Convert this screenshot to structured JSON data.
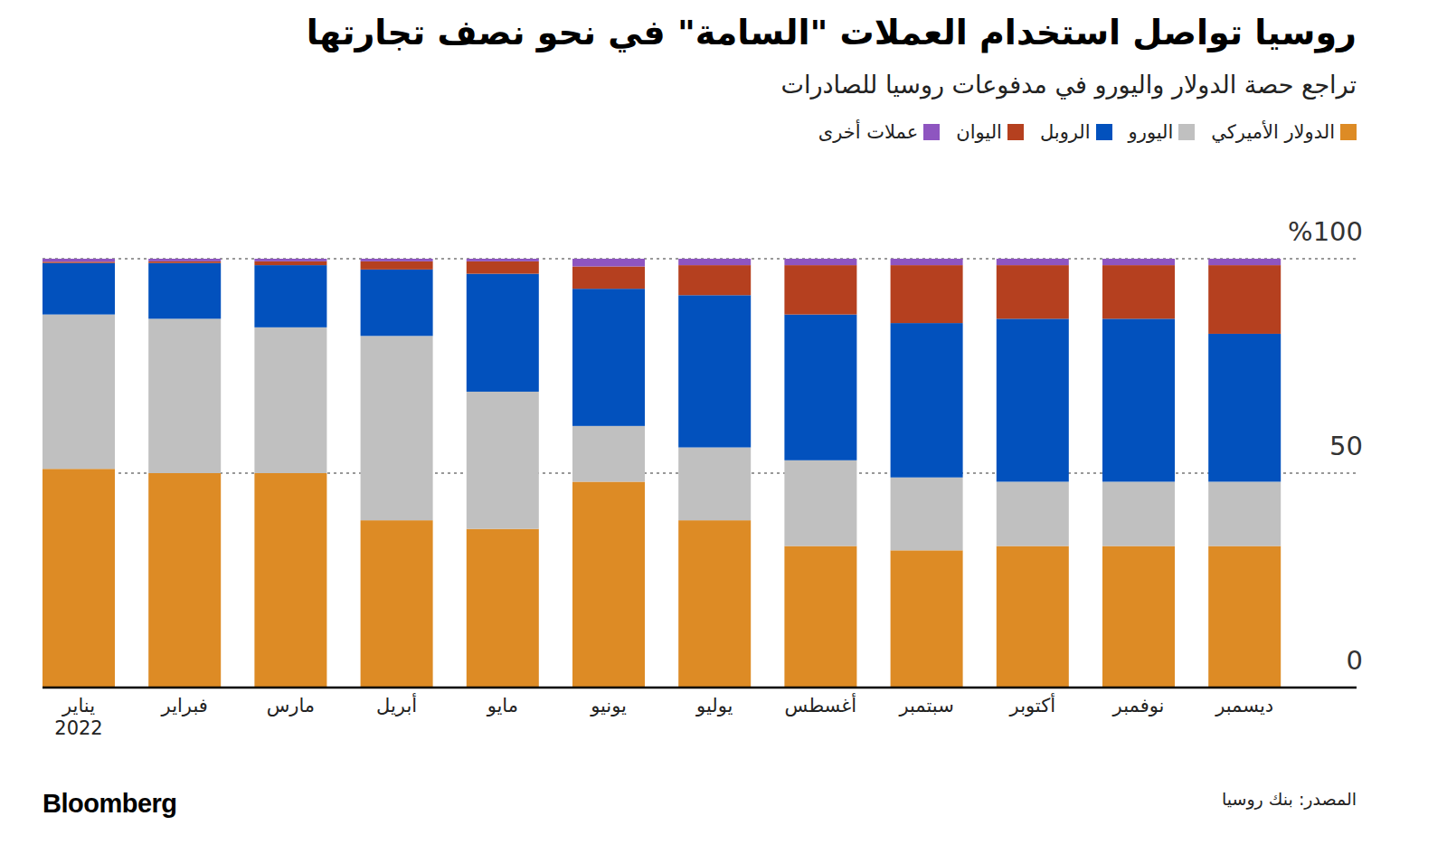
{
  "chart_data": {
    "type": "bar",
    "stacked": true,
    "grid": true,
    "title": "روسيا تواصل استخدام العملات \"السامة\" في نحو نصف تجارتها",
    "subtitle": "تراجع حصة الدولار واليورو في مدفوعات روسيا للصادرات",
    "source": "المصدر: بنك روسيا",
    "brand": "Bloomberg",
    "categories": [
      "يناير 2022",
      "فبراير",
      "مارس",
      "أبريل",
      "مايو",
      "يونيو",
      "يوليو",
      "أغسطس",
      "سبتمبر",
      "أكتوبر",
      "نوفمبر",
      "ديسمبر"
    ],
    "ylim": [
      0,
      100
    ],
    "yticks": [
      0,
      50,
      {
        "value": 100,
        "label": "%100"
      }
    ],
    "series": [
      {
        "name": "الدولار الأميركي",
        "color": "#dd8b25",
        "values": [
          51,
          50,
          50,
          39,
          37,
          48,
          39,
          33,
          32,
          33,
          33,
          33
        ]
      },
      {
        "name": "اليورو",
        "color": "#c0c0c0",
        "values": [
          36,
          36,
          34,
          43,
          32,
          13,
          17,
          20,
          17,
          15,
          15,
          15
        ]
      },
      {
        "name": "الروبل",
        "color": "#0251bd",
        "values": [
          12,
          13,
          14.5,
          15.5,
          27.5,
          32,
          35.5,
          34,
          36,
          38,
          38,
          34.5
        ]
      },
      {
        "name": "اليوان",
        "color": "#b5401f",
        "values": [
          0.3,
          0.4,
          0.9,
          1.9,
          2.9,
          5.2,
          7,
          11.5,
          13.5,
          12.5,
          12.5,
          16
        ]
      },
      {
        "name": "عملات أخرى",
        "color": "#8e55c0",
        "values": [
          0.7,
          0.6,
          0.6,
          0.6,
          0.6,
          1.8,
          1.5,
          1.5,
          1.5,
          1.5,
          1.5,
          1.5
        ]
      }
    ]
  }
}
